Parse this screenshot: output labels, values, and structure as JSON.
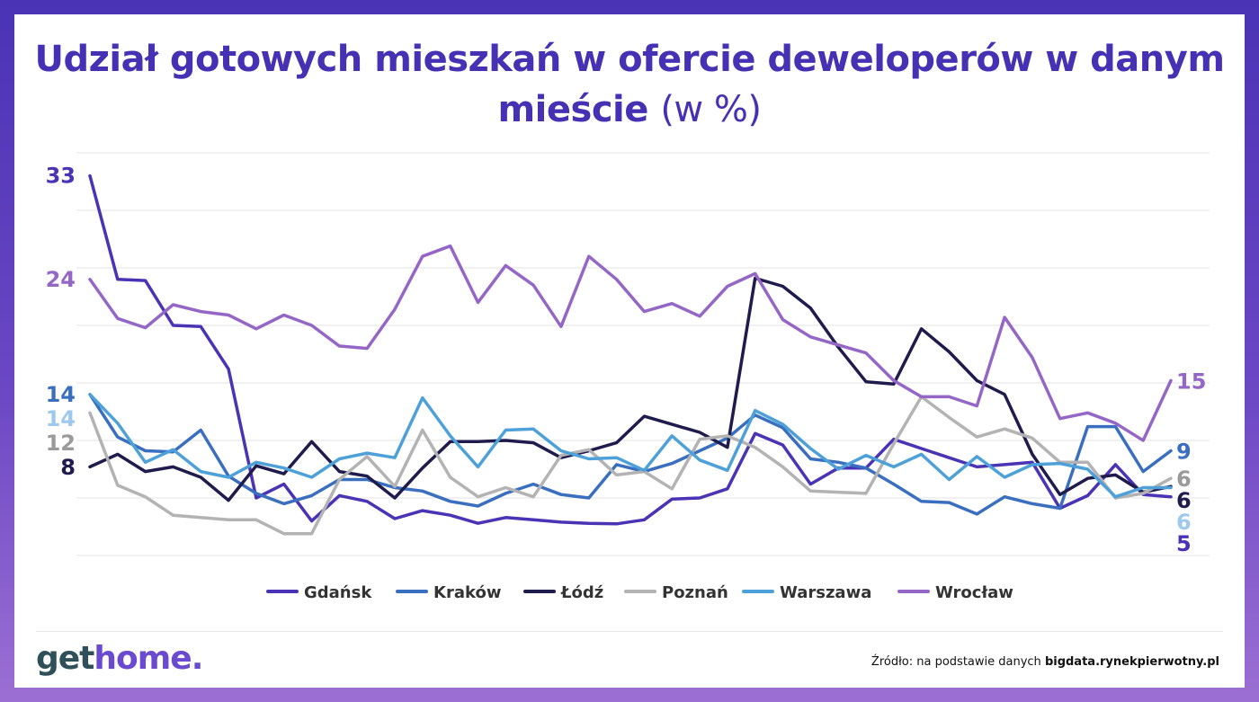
{
  "title": {
    "main": "Udział gotowych mieszkań w ofercie deweloperów w danym mieście",
    "unit": "(w %)"
  },
  "source": {
    "prefix": "Źródło: na podstawie danych",
    "site": "bigdata.rynekpierwotny.pl"
  },
  "logo": {
    "part1": "get",
    "part2": "home."
  },
  "chart_data": {
    "type": "line",
    "title": "Udział gotowych mieszkań w ofercie deweloperów w danym mieście (w %)",
    "xlabel": "",
    "ylabel": "",
    "ylim": [
      0,
      35
    ],
    "grid": "horizontal",
    "legend": "bottom",
    "series": [
      {
        "name": "Gdańsk",
        "color": "#4a33b5",
        "start_label": "33",
        "end_label": "5",
        "start_label_color": "#4a33b5",
        "end_label_color": "#4a33b5",
        "values": [
          33,
          24,
          23.9,
          20,
          19.9,
          16.2,
          5,
          6.2,
          3,
          5.2,
          4.7,
          3.2,
          3.9,
          3.5,
          2.8,
          3.3,
          3.1,
          2.9,
          2.8,
          2.75,
          3.1,
          4.9,
          5,
          5.8,
          10.6,
          9.6,
          6.2,
          7.6,
          7.6,
          10.1,
          9.3,
          8.5,
          7.7,
          7.9,
          8.1,
          4.1,
          5.2,
          7.9,
          5.3,
          5.1
        ]
      },
      {
        "name": "Kraków",
        "color": "#3a6fc0",
        "start_label": "14",
        "end_label": "9",
        "start_label_color": "#3a6fc0",
        "end_label_color": "#3a6fc0",
        "values": [
          14,
          10.3,
          9.1,
          9,
          10.9,
          6.9,
          5.4,
          4.5,
          5.2,
          6.6,
          6.6,
          5.9,
          5.6,
          4.7,
          4.3,
          5.4,
          6.2,
          5.3,
          5,
          7.9,
          7.3,
          8,
          9.1,
          10.2,
          12.2,
          11.1,
          8.4,
          8.1,
          7.6,
          6.2,
          4.7,
          4.6,
          3.6,
          5.1,
          4.5,
          4.1,
          11.2,
          11.2,
          7.3,
          9.1
        ]
      },
      {
        "name": "Łódź",
        "color": "#1f1b4d",
        "start_label": "8",
        "end_label": "6",
        "start_label_color": "#1f1b4d",
        "end_label_color": "#1f1b4d",
        "values": [
          7.7,
          8.8,
          7.3,
          7.7,
          6.8,
          4.8,
          7.8,
          7.1,
          9.9,
          7.3,
          6.9,
          5,
          7.6,
          9.9,
          9.9,
          10,
          9.8,
          8.5,
          9.1,
          9.8,
          12.1,
          11.4,
          10.7,
          9.4,
          24.1,
          23.4,
          21.5,
          18.1,
          15.1,
          14.9,
          19.7,
          17.7,
          15.2,
          14,
          8.8,
          5.3,
          6.7,
          7,
          5.5,
          6
        ]
      },
      {
        "name": "Poznań",
        "color": "#b3b3b3",
        "start_label": "12",
        "end_label": "6",
        "start_label_color": "#9a9a9a",
        "end_label_color": "#9a9a9a",
        "values": [
          12.4,
          6.1,
          5.1,
          3.5,
          3.3,
          3.1,
          3.1,
          1.9,
          1.9,
          6.6,
          8.6,
          6,
          10.9,
          6.8,
          5.1,
          5.9,
          5.1,
          8.7,
          9.2,
          7,
          7.3,
          5.8,
          10.1,
          10.4,
          9.4,
          7.7,
          5.6,
          5.5,
          5.4,
          9.7,
          13.8,
          12,
          10.3,
          11,
          10.2,
          8.1,
          8.1,
          5,
          5.4,
          6.7
        ]
      },
      {
        "name": "Warszawa",
        "color": "#4ea1d8",
        "start_label": "14",
        "end_label": "6",
        "start_label_color": "#9ec8ec",
        "end_label_color": "#9ec8ec",
        "values": [
          14,
          11.5,
          8.1,
          9.2,
          7.3,
          6.8,
          8.1,
          7.6,
          6.8,
          8.4,
          8.9,
          8.5,
          13.7,
          10.4,
          7.7,
          10.9,
          11,
          9.1,
          8.4,
          8.5,
          7.4,
          10.4,
          8.3,
          7.4,
          12.6,
          11.4,
          9.3,
          7.5,
          8.7,
          7.7,
          8.8,
          6.6,
          8.6,
          6.8,
          7.9,
          8,
          7.5,
          5.1,
          5.9,
          5.9
        ]
      },
      {
        "name": "Wrocław",
        "color": "#9467c7",
        "start_label": "24",
        "end_label": "15",
        "start_label_color": "#9467c7",
        "end_label_color": "#9467c7",
        "values": [
          24,
          20.6,
          19.8,
          21.8,
          21.2,
          20.9,
          19.7,
          20.9,
          20,
          18.2,
          18,
          21.4,
          26,
          26.9,
          22,
          25.2,
          23.5,
          19.9,
          26,
          24,
          21.2,
          21.9,
          20.8,
          23.4,
          24.5,
          20.5,
          19,
          18.3,
          17.6,
          15.2,
          13.8,
          13.8,
          13,
          20.7,
          17.2,
          11.9,
          12.4,
          11.5,
          10,
          15.2
        ]
      }
    ]
  }
}
